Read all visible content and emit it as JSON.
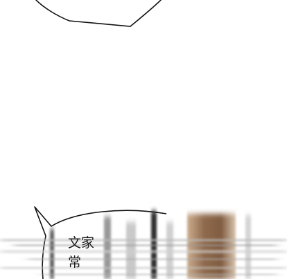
{
  "bubble_bottom": {
    "line_1": "文家",
    "line_2": "常"
  },
  "colors": {
    "background": "#ffffff",
    "outline": "#111111",
    "bronze": "#8a6a4e"
  }
}
